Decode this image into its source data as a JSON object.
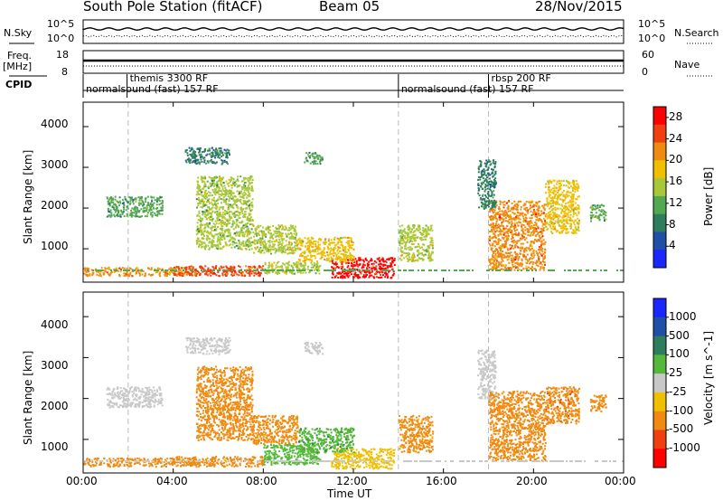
{
  "header": {
    "station": "South Pole Station (fitACF)",
    "beam": "Beam 05",
    "date": "28/Nov/2015"
  },
  "strip": {
    "nsky_label": "N.Sky",
    "nsky_ticks": [
      "10^5",
      "10^0"
    ],
    "nsearch_label": "N.Search",
    "nsearch_ticks": [
      "10^5",
      "10^0"
    ],
    "freq_label_1": "Freq.",
    "freq_label_2": "[MHz]",
    "freq_ticks": [
      "18",
      "8"
    ],
    "nave_label": "Nave",
    "nave_ticks": [
      "60",
      "0"
    ],
    "cpid_label": "CPID",
    "cpid_entries": [
      {
        "text": "normalsound (fast) 157 RF",
        "start_hour": 0.0,
        "row": "lower"
      },
      {
        "text": "themis 3300 RF",
        "start_hour": 1.95,
        "row": "upper"
      },
      {
        "text": "normalsound (fast) 157 RF",
        "start_hour": 14.0,
        "row": "lower"
      },
      {
        "text": "rbsp 200 RF",
        "start_hour": 18.0,
        "row": "upper"
      }
    ]
  },
  "panels": {
    "yaxis_label": "Slant Range [km]",
    "xaxis_label": "Time UT",
    "x_ticks": [
      "00:00",
      "04:00",
      "08:00",
      "12:00",
      "16:00",
      "20:00",
      "00:00"
    ],
    "y_ticks": [
      "1000",
      "2000",
      "3000",
      "4000"
    ]
  },
  "chart_data": [
    {
      "type": "heatmap",
      "panel": "power",
      "x_range_hours": [
        0,
        24
      ],
      "y_range_km": [
        180,
        4600
      ],
      "colorbar_label": "Power [dB]",
      "colorbar_ticks": [
        "4",
        "8",
        "12",
        "16",
        "20",
        "24",
        "28"
      ],
      "colorbar_range": [
        0,
        30
      ],
      "colors": [
        "#1a28ff",
        "#1f4fa6",
        "#2e7d5e",
        "#55a852",
        "#a8c83a",
        "#f0c000",
        "#f08a10",
        "#f04010",
        "#ff0000"
      ],
      "gridlines_hours": [
        2,
        14,
        18
      ],
      "blobs": [
        {
          "t0": 0.0,
          "t1": 5.0,
          "r0": 350,
          "r1": 560,
          "level": 20
        },
        {
          "t0": 4.0,
          "t1": 8.0,
          "r0": 350,
          "r1": 600,
          "level": 24
        },
        {
          "t0": 8.0,
          "t1": 10.5,
          "r0": 400,
          "r1": 700,
          "level": 16
        },
        {
          "t0": 11.0,
          "t1": 13.8,
          "r0": 300,
          "r1": 800,
          "level": 28
        },
        {
          "t0": 9.5,
          "t1": 12.0,
          "r0": 700,
          "r1": 1300,
          "level": 18
        },
        {
          "t0": 14.0,
          "t1": 15.5,
          "r0": 700,
          "r1": 1600,
          "level": 16
        },
        {
          "t0": 18.0,
          "t1": 20.5,
          "r0": 500,
          "r1": 2200,
          "level": 22
        },
        {
          "t0": 20.5,
          "t1": 22.0,
          "r0": 1400,
          "r1": 2700,
          "level": 18
        },
        {
          "t0": 1.0,
          "t1": 3.5,
          "r0": 1800,
          "r1": 2300,
          "level": 10
        },
        {
          "t0": 5.0,
          "t1": 7.5,
          "r0": 1000,
          "r1": 2800,
          "level": 14
        },
        {
          "t0": 7.5,
          "t1": 9.5,
          "r0": 900,
          "r1": 1600,
          "level": 16
        },
        {
          "t0": 4.5,
          "t1": 6.5,
          "r0": 3100,
          "r1": 3500,
          "level": 8
        },
        {
          "t0": 9.8,
          "t1": 10.6,
          "r0": 3100,
          "r1": 3400,
          "level": 10
        },
        {
          "t0": 17.5,
          "t1": 18.3,
          "r0": 2000,
          "r1": 3200,
          "level": 8
        },
        {
          "t0": 22.5,
          "t1": 23.2,
          "r0": 1700,
          "r1": 2100,
          "level": 12
        }
      ]
    },
    {
      "type": "heatmap",
      "panel": "velocity",
      "x_range_hours": [
        0,
        24
      ],
      "y_range_km": [
        180,
        4600
      ],
      "colorbar_label": "Velocity [m s^-1]",
      "colorbar_ticks": [
        "1000",
        "500",
        "100",
        "25",
        "-25",
        "-100",
        "-500",
        "-1000"
      ],
      "colors": [
        "#1a28ff",
        "#1f4fa6",
        "#2e7d5e",
        "#55b83a",
        "#c8c8c8",
        "#f0c000",
        "#f08a10",
        "#f04010",
        "#ff0000"
      ],
      "gridlines_hours": [
        2,
        14,
        18
      ],
      "blobs": [
        {
          "t0": 0.0,
          "t1": 5.0,
          "r0": 350,
          "r1": 560,
          "level": -200
        },
        {
          "t0": 4.0,
          "t1": 8.0,
          "r0": 350,
          "r1": 600,
          "level": -150
        },
        {
          "t0": 8.0,
          "t1": 10.5,
          "r0": 400,
          "r1": 900,
          "level": 60
        },
        {
          "t0": 11.0,
          "t1": 13.8,
          "r0": 300,
          "r1": 800,
          "level": -60
        },
        {
          "t0": 9.5,
          "t1": 12.0,
          "r0": 700,
          "r1": 1300,
          "level": 80
        },
        {
          "t0": 14.0,
          "t1": 15.5,
          "r0": 700,
          "r1": 1600,
          "level": -150
        },
        {
          "t0": 18.0,
          "t1": 20.5,
          "r0": 500,
          "r1": 2200,
          "level": -250
        },
        {
          "t0": 20.5,
          "t1": 22.0,
          "r0": 1400,
          "r1": 2300,
          "level": -400
        },
        {
          "t0": 1.0,
          "t1": 3.5,
          "r0": 1800,
          "r1": 2300,
          "level": 0
        },
        {
          "t0": 5.0,
          "t1": 7.5,
          "r0": 1000,
          "r1": 2800,
          "level": -200
        },
        {
          "t0": 7.5,
          "t1": 9.5,
          "r0": 900,
          "r1": 1600,
          "level": -120
        },
        {
          "t0": 4.5,
          "t1": 6.5,
          "r0": 3100,
          "r1": 3500,
          "level": 0
        },
        {
          "t0": 9.8,
          "t1": 10.6,
          "r0": 3100,
          "r1": 3400,
          "level": 0
        },
        {
          "t0": 17.5,
          "t1": 18.3,
          "r0": 2000,
          "r1": 3200,
          "level": 0
        },
        {
          "t0": 22.5,
          "t1": 23.2,
          "r0": 1700,
          "r1": 2100,
          "level": -300
        }
      ]
    }
  ]
}
